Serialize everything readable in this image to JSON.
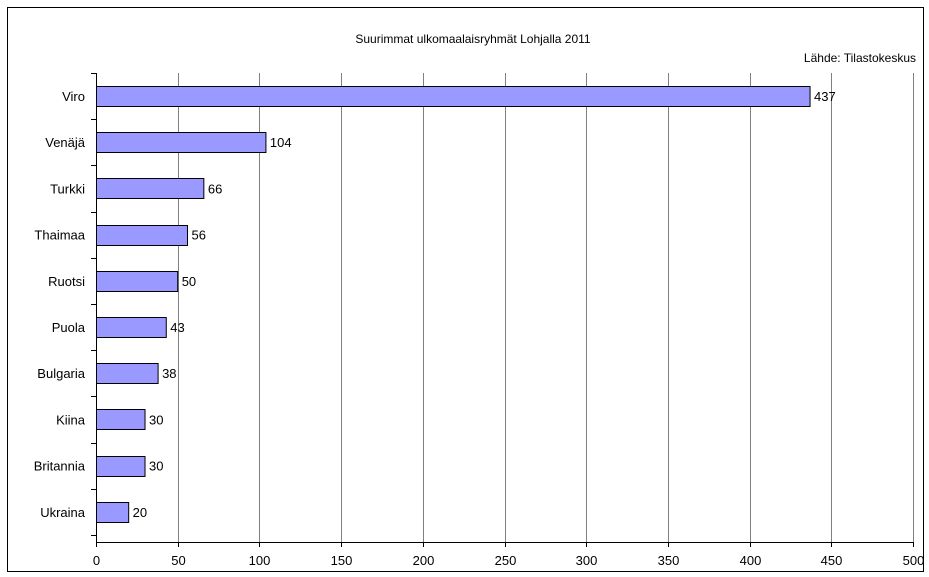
{
  "chart_data": {
    "type": "bar",
    "orientation": "horizontal",
    "title": "Suurimmat ulkomaalaisryhmät Lohjalla 2011",
    "source": "Lähde: Tilastokeskus",
    "categories": [
      "Viro",
      "Venäjä",
      "Turkki",
      "Thaimaa",
      "Ruotsi",
      "Puola",
      "Bulgaria",
      "Kiina",
      "Britannia",
      "Ukraina"
    ],
    "values": [
      437,
      104,
      66,
      56,
      50,
      43,
      38,
      30,
      30,
      20
    ],
    "xlim": [
      0,
      500
    ],
    "x_ticks": [
      0,
      50,
      100,
      150,
      200,
      250,
      300,
      350,
      400,
      450,
      500
    ],
    "xlabel": "",
    "ylabel": "",
    "grid": "vertical",
    "legend": "none",
    "bar_color": "#9999ff",
    "bar_edge_color": "#000000",
    "grid_color": "#808080"
  }
}
